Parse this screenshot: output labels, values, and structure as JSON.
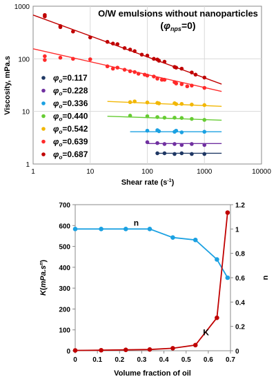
{
  "chart_data": [
    {
      "type": "scatter",
      "title": "O/W emulsions without nanoparticles",
      "subtitle_var": "φ",
      "subtitle_sub": "nps",
      "subtitle_val": "=0)",
      "subtitle_open": "(",
      "xlabel": "Shear rate (s",
      "xlabel_sup": "-1",
      "xlabel_close": ")",
      "ylabel": "Viscosity, mPa.s",
      "xscale": "log",
      "yscale": "log",
      "xlim": [
        1,
        10000
      ],
      "ylim": [
        1,
        1000
      ],
      "x_ticks": [
        1,
        10,
        100,
        1000,
        10000
      ],
      "x_tick_labels": [
        "1",
        "10",
        "100",
        "1000",
        "10000"
      ],
      "y_ticks": [
        1,
        10,
        100,
        1000
      ],
      "y_tick_labels": [
        "1",
        "10",
        "100",
        "1000"
      ],
      "legend_placement": "left",
      "series": [
        {
          "name": "φo=0.117",
          "label_var": "φ",
          "label_sub": "o",
          "label_val": "=0.117",
          "color": "#1f3864",
          "points": [
            [
              150,
              1.6
            ],
            [
              200,
              1.6
            ],
            [
              300,
              1.55
            ],
            [
              400,
              1.6
            ],
            [
              600,
              1.55
            ],
            [
              1000,
              1.55
            ]
          ],
          "fit": [
            [
              150,
              1.6
            ],
            [
              2000,
              1.6
            ]
          ]
        },
        {
          "name": "φo=0.228",
          "label_var": "φ",
          "label_sub": "o",
          "label_val": "=0.228",
          "color": "#7030a0",
          "points": [
            [
              100,
              2.6
            ],
            [
              150,
              2.5
            ],
            [
              200,
              2.4
            ],
            [
              300,
              2.4
            ],
            [
              400,
              2.3
            ],
            [
              600,
              2.4
            ],
            [
              1000,
              2.3
            ]
          ],
          "fit": [
            [
              100,
              2.45
            ],
            [
              2000,
              2.45
            ]
          ]
        },
        {
          "name": "φo=0.336",
          "label_var": "φ",
          "label_sub": "o",
          "label_val": "=0.336",
          "color": "#1ba1e2",
          "points": [
            [
              100,
              4.3
            ],
            [
              150,
              4.4
            ],
            [
              160,
              4.2
            ],
            [
              300,
              4.1
            ],
            [
              320,
              4.3
            ],
            [
              400,
              4.0
            ],
            [
              1000,
              4.1
            ]
          ],
          "fit": [
            [
              50,
              4.1
            ],
            [
              2000,
              4.1
            ]
          ]
        },
        {
          "name": "φo=0.440",
          "label_var": "φ",
          "label_sub": "o",
          "label_val": "=0.440",
          "color": "#66cc33",
          "points": [
            [
              50,
              8.3
            ],
            [
              100,
              8.1
            ],
            [
              150,
              7.8
            ],
            [
              200,
              7.6
            ],
            [
              300,
              7.6
            ],
            [
              400,
              7.5
            ],
            [
              600,
              7.2
            ],
            [
              1000,
              6.9
            ]
          ],
          "fit": [
            [
              20,
              8.1
            ],
            [
              2000,
              6.8
            ]
          ]
        },
        {
          "name": "φo=0.542",
          "label_var": "φ",
          "label_sub": "o",
          "label_val": "=0.542",
          "color": "#f2b705",
          "points": [
            [
              50,
              15
            ],
            [
              60,
              15.5
            ],
            [
              100,
              14.8
            ],
            [
              150,
              14.5
            ],
            [
              160,
              14.2
            ],
            [
              300,
              14.3
            ],
            [
              320,
              13.8
            ],
            [
              400,
              13.9
            ],
            [
              600,
              13.5
            ],
            [
              1000,
              13.2
            ]
          ],
          "fit": [
            [
              20,
              15.5
            ],
            [
              2000,
              12.5
            ]
          ]
        },
        {
          "name": "φo=0.639",
          "label_var": "φ",
          "label_sub": "o",
          "label_val": "=0.639",
          "color": "#ff2a2a",
          "points": [
            [
              1.6,
              112
            ],
            [
              1.6,
              95
            ],
            [
              3,
              105
            ],
            [
              5,
              100
            ],
            [
              10,
              98
            ],
            [
              20,
              72
            ],
            [
              25,
              65
            ],
            [
              30,
              68
            ],
            [
              40,
              62
            ],
            [
              50,
              58
            ],
            [
              60,
              56
            ],
            [
              70,
              52
            ],
            [
              90,
              50
            ],
            [
              100,
              48
            ],
            [
              130,
              46
            ],
            [
              150,
              42
            ],
            [
              180,
              40
            ],
            [
              200,
              40
            ],
            [
              300,
              36
            ],
            [
              320,
              34
            ],
            [
              400,
              33
            ],
            [
              500,
              30
            ],
            [
              600,
              31
            ],
            [
              1000,
              28
            ]
          ],
          "fit": [
            [
              1,
              155
            ],
            [
              2000,
              24
            ]
          ]
        },
        {
          "name": "φo=0.687",
          "label_var": "φ",
          "label_sub": "o",
          "label_val": "=0.687",
          "color": "#c00000",
          "points": [
            [
              1.6,
              680
            ],
            [
              1.6,
              640
            ],
            [
              3,
              420
            ],
            [
              3,
              400
            ],
            [
              5,
              330
            ],
            [
              10,
              255
            ],
            [
              20,
              210
            ],
            [
              25,
              195
            ],
            [
              30,
              190
            ],
            [
              40,
              160
            ],
            [
              50,
              150
            ],
            [
              60,
              140
            ],
            [
              80,
              120
            ],
            [
              100,
              115
            ],
            [
              130,
              100
            ],
            [
              150,
              97
            ],
            [
              160,
              92
            ],
            [
              200,
              88
            ],
            [
              300,
              70
            ],
            [
              320,
              68
            ],
            [
              400,
              65
            ],
            [
              600,
              55
            ],
            [
              700,
              50
            ],
            [
              1000,
              44
            ]
          ],
          "fit": [
            [
              1,
              680
            ],
            [
              2000,
              33
            ]
          ]
        }
      ]
    },
    {
      "type": "line",
      "xlabel": "Volume fraction of oil",
      "ylabel_left_var": "K",
      "ylabel_left_open": "(",
      "ylabel_left_unit": "mPa.s",
      "ylabel_left_sup": "n",
      "ylabel_left_close": ")",
      "ylabel_right": "n",
      "xlim": [
        0,
        0.7
      ],
      "ylim_left": [
        0,
        700
      ],
      "ylim_right": [
        0,
        1.2
      ],
      "x_ticks": [
        0,
        0.1,
        0.2,
        0.3,
        0.4,
        0.5,
        0.6,
        0.7
      ],
      "x_tick_labels": [
        "0",
        "0.1",
        "0.2",
        "0.3",
        "0.4",
        "0.5",
        "0.6",
        "0.7"
      ],
      "y_left_ticks": [
        0,
        100,
        200,
        300,
        400,
        500,
        600,
        700
      ],
      "y_left_tick_labels": [
        "0",
        "100",
        "200",
        "300",
        "400",
        "500",
        "600",
        "700"
      ],
      "y_right_ticks": [
        0,
        0.2,
        0.4,
        0.6,
        0.8,
        1,
        1.2
      ],
      "y_right_tick_labels": [
        "0",
        "0.2",
        "0.4",
        "0.6",
        "0.8",
        "1",
        "1.2"
      ],
      "series": [
        {
          "name": "n",
          "axis": "right",
          "color": "#1ba1e2",
          "x": [
            0,
            0.117,
            0.228,
            0.336,
            0.44,
            0.542,
            0.639,
            0.687
          ],
          "y": [
            1.0,
            1.0,
            1.0,
            1.0,
            0.93,
            0.91,
            0.75,
            0.6
          ]
        },
        {
          "name": "K",
          "axis": "left",
          "color": "#c00000",
          "x": [
            0,
            0.117,
            0.228,
            0.336,
            0.44,
            0.542,
            0.639,
            0.687
          ],
          "y": [
            1.6,
            2.5,
            4.2,
            6,
            12,
            27,
            158,
            662
          ]
        }
      ]
    }
  ]
}
